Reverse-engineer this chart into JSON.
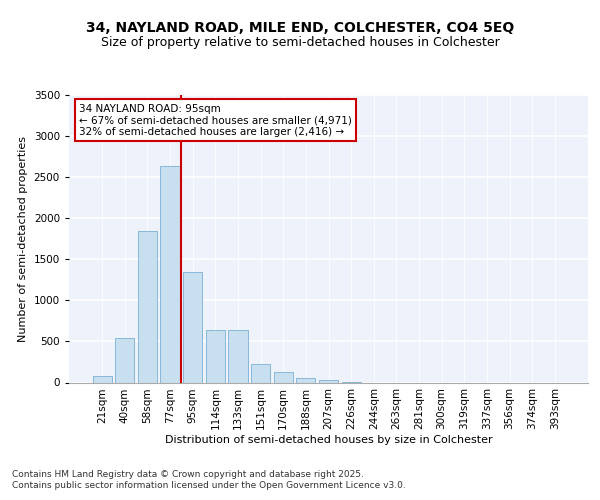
{
  "title1": "34, NAYLAND ROAD, MILE END, COLCHESTER, CO4 5EQ",
  "title2": "Size of property relative to semi-detached houses in Colchester",
  "xlabel": "Distribution of semi-detached houses by size in Colchester",
  "ylabel": "Number of semi-detached properties",
  "bar_color": "#c8dff0",
  "bar_edge_color": "#7aafd4",
  "annotation_line_color": "#cc0000",
  "annotation_box_color": "#cc0000",
  "annotation_text": "34 NAYLAND ROAD: 95sqm\n← 67% of semi-detached houses are smaller (4,971)\n32% of semi-detached houses are larger (2,416) →",
  "property_bin_index": 4,
  "categories": [
    "21sqm",
    "40sqm",
    "58sqm",
    "77sqm",
    "95sqm",
    "114sqm",
    "133sqm",
    "151sqm",
    "170sqm",
    "188sqm",
    "207sqm",
    "226sqm",
    "244sqm",
    "263sqm",
    "281sqm",
    "300sqm",
    "319sqm",
    "337sqm",
    "356sqm",
    "374sqm",
    "393sqm"
  ],
  "values": [
    75,
    540,
    1850,
    2630,
    1350,
    640,
    640,
    220,
    125,
    50,
    30,
    5,
    0,
    0,
    0,
    0,
    0,
    0,
    0,
    0,
    0
  ],
  "ylim": [
    0,
    3500
  ],
  "yticks": [
    0,
    500,
    1000,
    1500,
    2000,
    2500,
    3000,
    3500
  ],
  "background_color": "#eef2fb",
  "grid_color": "#ffffff",
  "footer_text": "Contains HM Land Registry data © Crown copyright and database right 2025.\nContains public sector information licensed under the Open Government Licence v3.0.",
  "title_fontsize": 10,
  "subtitle_fontsize": 9,
  "axis_label_fontsize": 8,
  "tick_fontsize": 7.5
}
